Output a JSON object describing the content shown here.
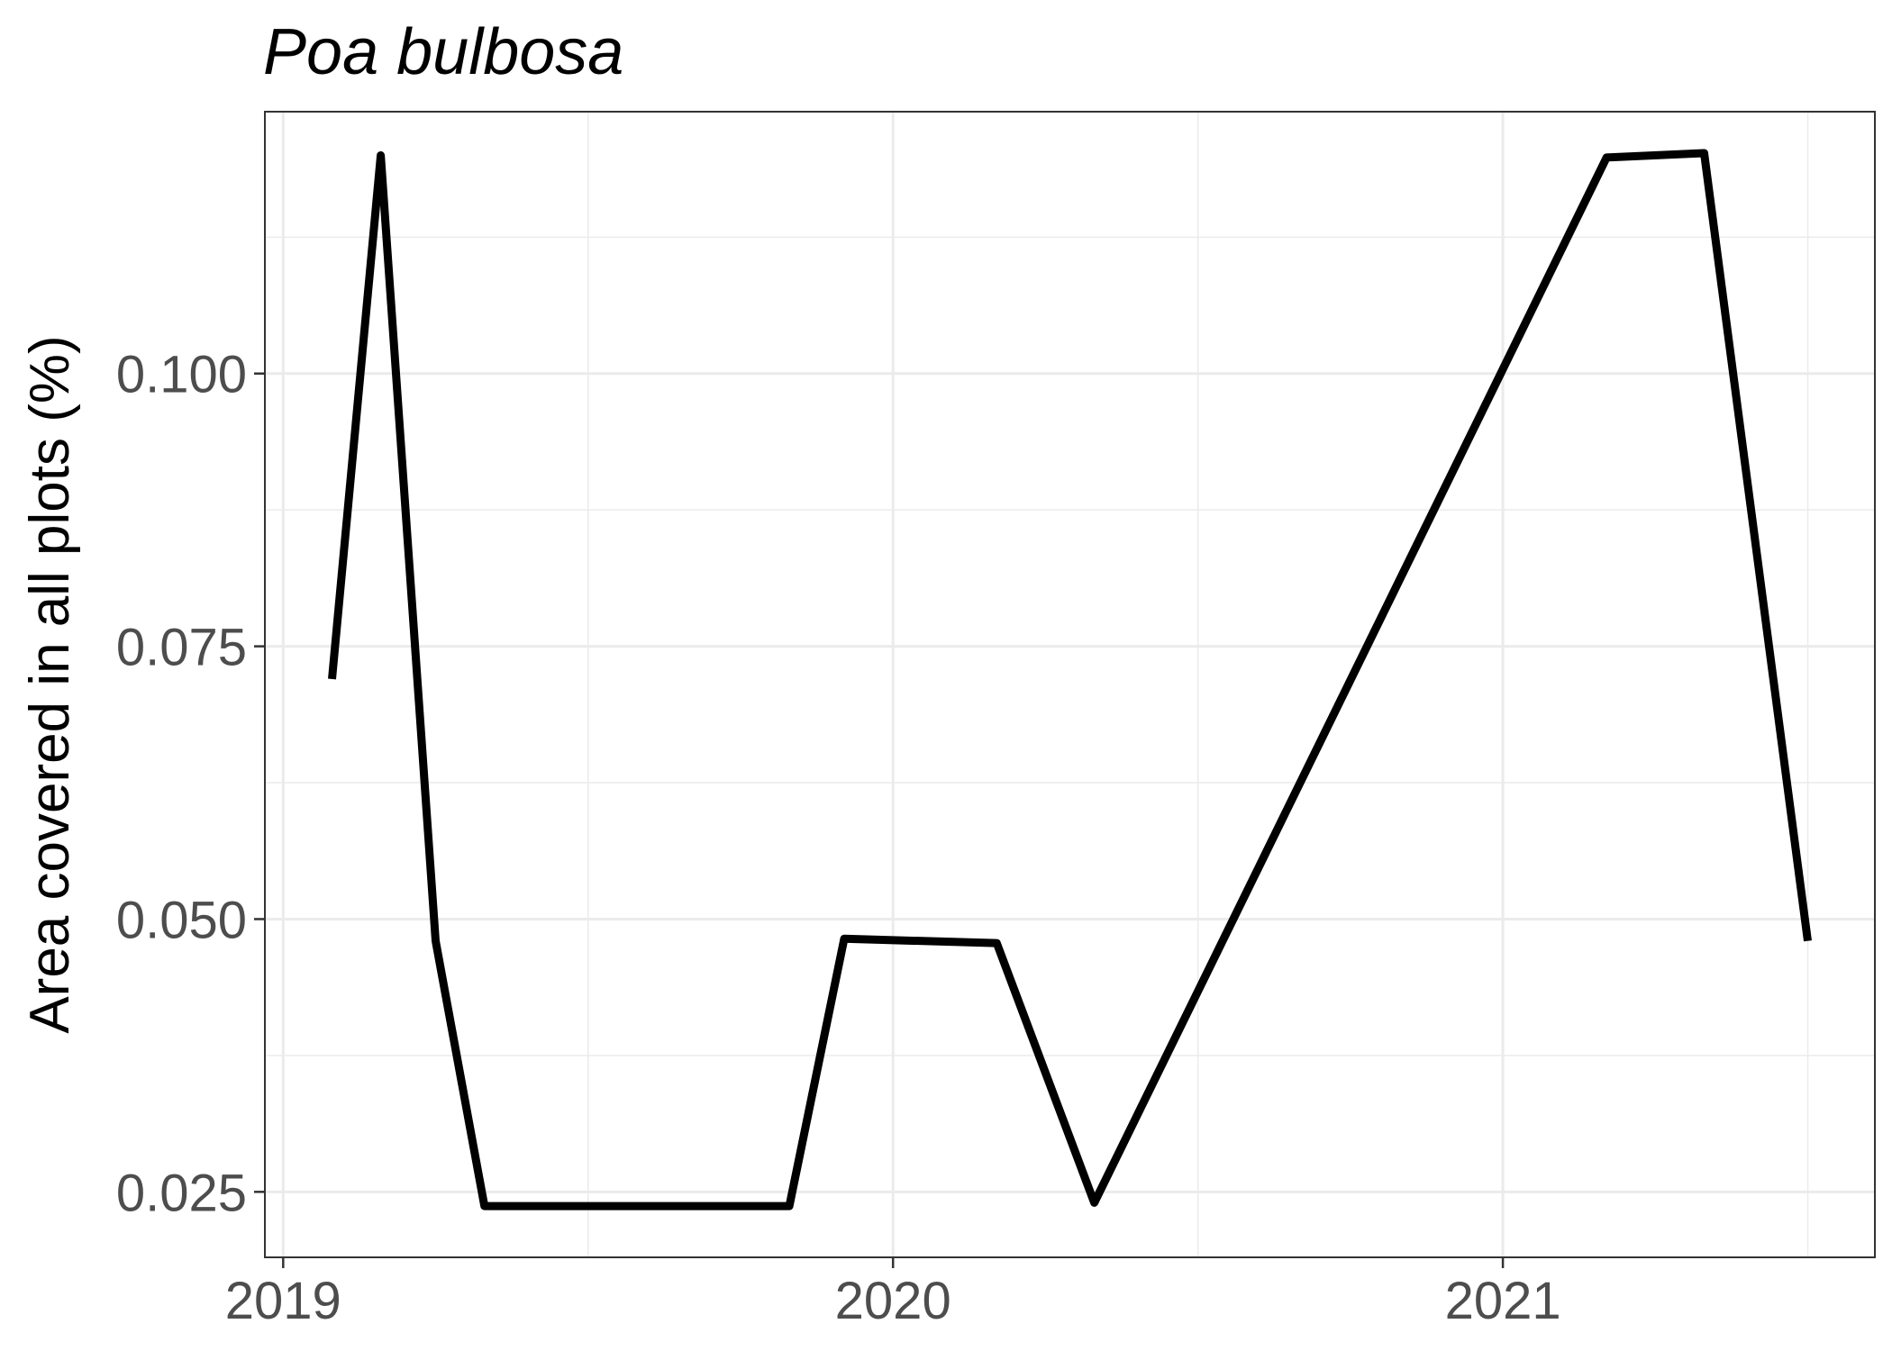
{
  "chart_data": {
    "type": "line",
    "title": "Poa bulbosa",
    "xlabel": "",
    "ylabel": "Area covered in all plots (%)",
    "x_ticks": [
      "2019",
      "2020",
      "2021"
    ],
    "y_ticks": [
      "0.025",
      "0.050",
      "0.075",
      "0.100"
    ],
    "xlim": [
      2018.97,
      2021.61
    ],
    "ylim": [
      0.019,
      0.124
    ],
    "grid": true,
    "legend": "none",
    "line_color": "#000000",
    "grid_color": "#ebebeb",
    "series": [
      {
        "x": [
          2019.08,
          2019.16,
          2019.25,
          2019.33,
          2019.83,
          2019.92,
          2020.17,
          2020.33,
          2021.17,
          2021.33,
          2021.5
        ],
        "y": [
          0.072,
          0.12,
          0.048,
          0.0237,
          0.0237,
          0.0482,
          0.0478,
          0.024,
          0.1198,
          0.1202,
          0.048
        ]
      }
    ]
  }
}
